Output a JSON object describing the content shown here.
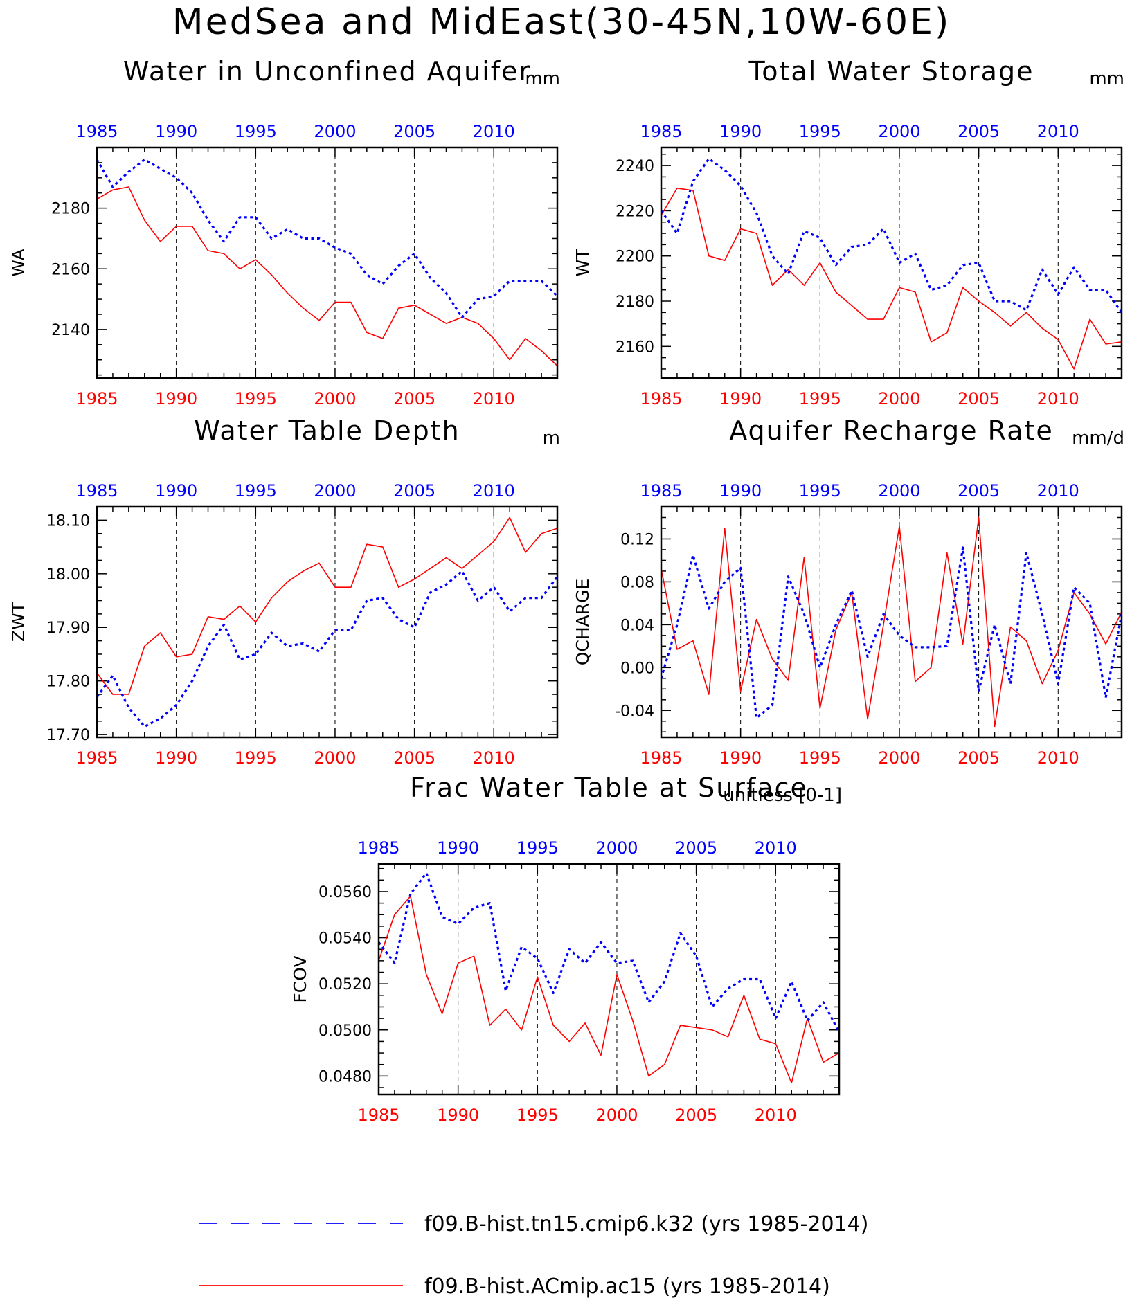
{
  "page_title": "MedSea and MidEast(30-45N,10W-60E)",
  "colors": {
    "series1": "#0000ff",
    "series2": "#ff0000",
    "axis": "#000000"
  },
  "legend": [
    {
      "label": "f09.B-hist.tn15.cmip6.k32 (yrs 1985-2014)",
      "color": "#0000ff",
      "style": "dashed"
    },
    {
      "label": "f09.B-hist.ACmip.ac15 (yrs 1985-2014)",
      "color": "#ff0000",
      "style": "solid"
    }
  ],
  "chart_data": [
    {
      "type": "line",
      "title": "Water in Unconfined Aquifer",
      "ylabel": "WA",
      "units": "mm",
      "xlim": [
        1985,
        2014
      ],
      "ylim": [
        2124,
        2200
      ],
      "yticks": [
        2140,
        2160,
        2180
      ],
      "ytick_labels": [
        "2140",
        "2160",
        "2180"
      ],
      "xticks": [
        1985,
        1990,
        1995,
        2000,
        2005,
        2010
      ],
      "xtick_labels": [
        "1985",
        "1990",
        "1995",
        "2000",
        "2005",
        "2010"
      ],
      "x": [
        1985,
        1986,
        1987,
        1988,
        1989,
        1990,
        1991,
        1992,
        1993,
        1994,
        1995,
        1996,
        1997,
        1998,
        1999,
        2000,
        2001,
        2002,
        2003,
        2004,
        2005,
        2006,
        2007,
        2008,
        2009,
        2010,
        2011,
        2012,
        2013,
        2014
      ],
      "series": [
        {
          "values": [
            2196,
            2187,
            2192,
            2196,
            2193,
            2190,
            2185,
            2176,
            2169,
            2177,
            2177,
            2170,
            2173,
            2170,
            2170,
            2167,
            2165,
            2158,
            2155,
            2161,
            2165,
            2157,
            2152,
            2144,
            2150,
            2151,
            2156,
            2156,
            2156,
            2151
          ]
        },
        {
          "values": [
            2183,
            2186,
            2187,
            2176,
            2169,
            2174,
            2174,
            2166,
            2165,
            2160,
            2163,
            2158,
            2152,
            2147,
            2143,
            2149,
            2149,
            2139,
            2137,
            2147,
            2148,
            2145,
            2142,
            2144,
            2142,
            2137,
            2130,
            2137,
            2133,
            2128
          ]
        }
      ]
    },
    {
      "type": "line",
      "title": "Total Water Storage",
      "ylabel": "WT",
      "units": "mm",
      "xlim": [
        1985,
        2014
      ],
      "ylim": [
        2146,
        2248
      ],
      "yticks": [
        2160,
        2180,
        2200,
        2220,
        2240
      ],
      "ytick_labels": [
        "2160",
        "2180",
        "2200",
        "2220",
        "2240"
      ],
      "xticks": [
        1985,
        1990,
        1995,
        2000,
        2005,
        2010
      ],
      "xtick_labels": [
        "1985",
        "1990",
        "1995",
        "2000",
        "2005",
        "2010"
      ],
      "x": [
        1985,
        1986,
        1987,
        1988,
        1989,
        1990,
        1991,
        1992,
        1993,
        1994,
        1995,
        1996,
        1997,
        1998,
        1999,
        2000,
        2001,
        2002,
        2003,
        2004,
        2005,
        2006,
        2007,
        2008,
        2009,
        2010,
        2011,
        2012,
        2013,
        2014
      ],
      "series": [
        {
          "values": [
            2220,
            2210,
            2233,
            2243,
            2238,
            2231,
            2219,
            2200,
            2192,
            2211,
            2208,
            2196,
            2204,
            2205,
            2212,
            2197,
            2201,
            2185,
            2187,
            2196,
            2197,
            2180,
            2180,
            2176,
            2194,
            2183,
            2195,
            2185,
            2185,
            2175
          ]
        },
        {
          "values": [
            2218,
            2230,
            2229,
            2200,
            2198,
            2212,
            2210,
            2187,
            2194,
            2187,
            2197,
            2184,
            2178,
            2172,
            2172,
            2186,
            2184,
            2162,
            2166,
            2186,
            2180,
            2175,
            2169,
            2175,
            2168,
            2163,
            2150,
            2172,
            2161,
            2162
          ]
        }
      ]
    },
    {
      "type": "line",
      "title": "Water Table Depth",
      "ylabel": "ZWT",
      "units": "m",
      "xlim": [
        1985,
        2014
      ],
      "ylim": [
        17.695,
        18.125
      ],
      "yticks": [
        17.7,
        17.8,
        17.9,
        18.0,
        18.1
      ],
      "ytick_labels": [
        "17.70",
        "17.80",
        "17.90",
        "18.00",
        "18.10"
      ],
      "xticks": [
        1985,
        1990,
        1995,
        2000,
        2005,
        2010
      ],
      "xtick_labels": [
        "1985",
        "1990",
        "1995",
        "2000",
        "2005",
        "2010"
      ],
      "x": [
        1985,
        1986,
        1987,
        1988,
        1989,
        1990,
        1991,
        1992,
        1993,
        1994,
        1995,
        1996,
        1997,
        1998,
        1999,
        2000,
        2001,
        2002,
        2003,
        2004,
        2005,
        2006,
        2007,
        2008,
        2009,
        2010,
        2011,
        2012,
        2013,
        2014
      ],
      "series": [
        {
          "values": [
            17.77,
            17.81,
            17.75,
            17.715,
            17.73,
            17.755,
            17.8,
            17.865,
            17.905,
            17.84,
            17.85,
            17.89,
            17.865,
            17.87,
            17.855,
            17.895,
            17.895,
            17.95,
            17.955,
            17.915,
            17.9,
            17.965,
            17.98,
            18.005,
            17.95,
            17.975,
            17.93,
            17.955,
            17.955,
            17.995
          ]
        },
        {
          "values": [
            17.815,
            17.775,
            17.775,
            17.865,
            17.89,
            17.845,
            17.85,
            17.92,
            17.915,
            17.94,
            17.91,
            17.955,
            17.985,
            18.005,
            18.02,
            17.975,
            17.975,
            18.055,
            18.05,
            17.975,
            17.99,
            18.01,
            18.03,
            18.01,
            18.035,
            18.06,
            18.105,
            18.04,
            18.075,
            18.085
          ]
        }
      ]
    },
    {
      "type": "line",
      "title": "Aquifer Recharge Rate",
      "ylabel": "QCHARGE",
      "units": "mm/d",
      "xlim": [
        1985,
        2014
      ],
      "ylim": [
        -0.065,
        0.15
      ],
      "yticks": [
        -0.04,
        0.0,
        0.04,
        0.08,
        0.12
      ],
      "ytick_labels": [
        "-0.04",
        "0.00",
        "0.04",
        "0.08",
        "0.12"
      ],
      "xticks": [
        1985,
        1990,
        1995,
        2000,
        2005,
        2010
      ],
      "xtick_labels": [
        "1985",
        "1990",
        "1995",
        "2000",
        "2005",
        "2010"
      ],
      "x": [
        1985,
        1986,
        1987,
        1988,
        1989,
        1990,
        1991,
        1992,
        1993,
        1994,
        1995,
        1996,
        1997,
        1998,
        1999,
        2000,
        2001,
        2002,
        2003,
        2004,
        2005,
        2006,
        2007,
        2008,
        2009,
        2010,
        2011,
        2012,
        2013,
        2014
      ],
      "series": [
        {
          "values": [
            -0.01,
            0.04,
            0.105,
            0.055,
            0.08,
            0.093,
            -0.047,
            -0.035,
            0.085,
            0.05,
            0.0,
            0.04,
            0.072,
            0.01,
            0.05,
            0.03,
            0.019,
            0.019,
            0.02,
            0.112,
            -0.022,
            0.04,
            -0.015,
            0.107,
            0.05,
            -0.015,
            0.075,
            0.06,
            -0.028,
            0.05
          ]
        },
        {
          "values": [
            0.092,
            0.017,
            0.025,
            -0.025,
            0.13,
            -0.022,
            0.045,
            0.008,
            -0.012,
            0.103,
            -0.038,
            0.035,
            0.07,
            -0.048,
            0.04,
            0.132,
            -0.013,
            0.0,
            0.107,
            0.022,
            0.14,
            -0.055,
            0.038,
            0.025,
            -0.015,
            0.016,
            0.07,
            0.05,
            0.022,
            0.052
          ]
        }
      ]
    },
    {
      "type": "line",
      "title": "Frac Water Table at Surface",
      "ylabel": "FCOV",
      "units": "unitless [0-1]",
      "xlim": [
        1985,
        2014
      ],
      "ylim": [
        0.0472,
        0.0572
      ],
      "yticks": [
        0.048,
        0.05,
        0.052,
        0.054,
        0.056
      ],
      "ytick_labels": [
        "0.0480",
        "0.0500",
        "0.0520",
        "0.0540",
        "0.0560"
      ],
      "xticks": [
        1985,
        1990,
        1995,
        2000,
        2005,
        2010
      ],
      "xtick_labels": [
        "1985",
        "1990",
        "1995",
        "2000",
        "2005",
        "2010"
      ],
      "x": [
        1985,
        1986,
        1987,
        1988,
        1989,
        1990,
        1991,
        1992,
        1993,
        1994,
        1995,
        1996,
        1997,
        1998,
        1999,
        2000,
        2001,
        2002,
        2003,
        2004,
        2005,
        2006,
        2007,
        2008,
        2009,
        2010,
        2011,
        2012,
        2013,
        2014
      ],
      "series": [
        {
          "values": [
            0.0538,
            0.0529,
            0.0559,
            0.0568,
            0.0549,
            0.0546,
            0.0553,
            0.0555,
            0.0517,
            0.0536,
            0.0531,
            0.0516,
            0.0535,
            0.0529,
            0.0538,
            0.0529,
            0.053,
            0.0512,
            0.0521,
            0.0542,
            0.0532,
            0.051,
            0.0518,
            0.0522,
            0.0522,
            0.0505,
            0.0521,
            0.0504,
            0.0512,
            0.0499
          ]
        },
        {
          "values": [
            0.053,
            0.055,
            0.0558,
            0.0524,
            0.0507,
            0.0529,
            0.0532,
            0.0502,
            0.0509,
            0.05,
            0.0523,
            0.0502,
            0.0495,
            0.0503,
            0.0489,
            0.0524,
            0.0504,
            0.048,
            0.0485,
            0.0502,
            0.0501,
            0.05,
            0.0497,
            0.0515,
            0.0496,
            0.0494,
            0.0477,
            0.0505,
            0.0486,
            0.049
          ]
        }
      ]
    }
  ]
}
